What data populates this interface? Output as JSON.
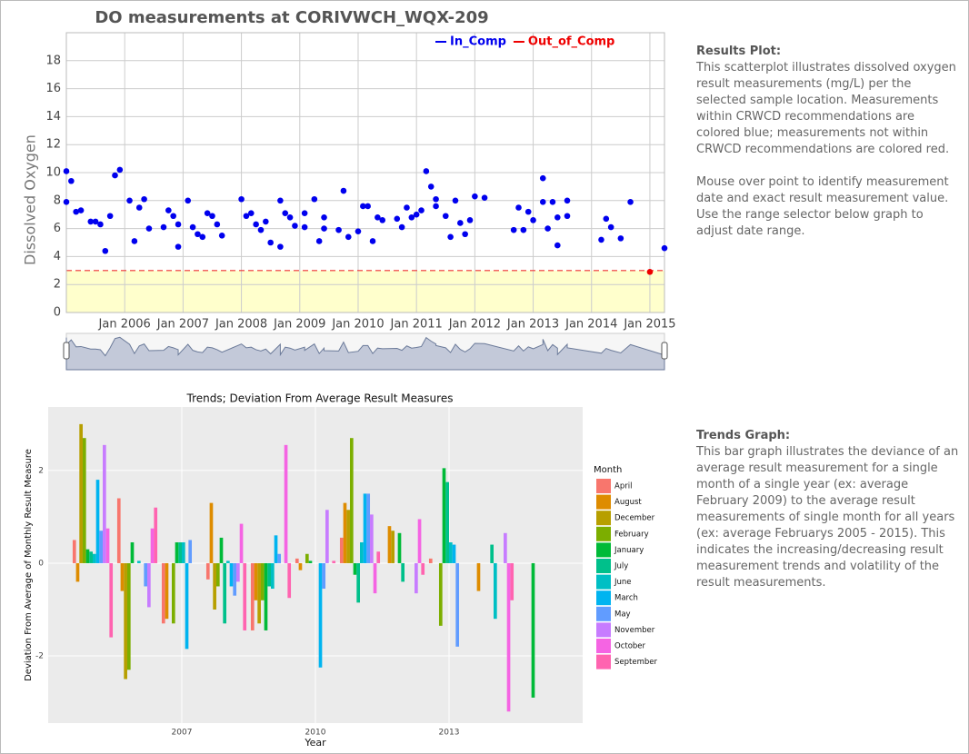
{
  "chart_data": [
    {
      "type": "scatter",
      "title": "DO measurements at CORIVWCH_WQX-209",
      "y_label": "Dissolved Oxygen",
      "xlim": [
        "2005-01",
        "2015-04"
      ],
      "xticks": [
        {
          "value": "2006-01",
          "label": "Jan 2006"
        },
        {
          "value": "2007-01",
          "label": "Jan 2007"
        },
        {
          "value": "2008-01",
          "label": "Jan 2008"
        },
        {
          "value": "2009-01",
          "label": "Jan 2009"
        },
        {
          "value": "2010-01",
          "label": "Jan 2010"
        },
        {
          "value": "2011-01",
          "label": "Jan 2011"
        },
        {
          "value": "2012-01",
          "label": "Jan 2012"
        },
        {
          "value": "2013-01",
          "label": "Jan 2013"
        },
        {
          "value": "2014-01",
          "label": "Jan 2014"
        },
        {
          "value": "2015-01",
          "label": "Jan 2015"
        }
      ],
      "ylim": [
        0,
        20
      ],
      "yticks": [
        0,
        2,
        4,
        6,
        8,
        10,
        12,
        14,
        16,
        18
      ],
      "grid": true,
      "threshold": 3,
      "series": [
        {
          "name": "In_Comp",
          "color": "#0000ee",
          "x": [
            "2005-01",
            "2005-01",
            "2005-02",
            "2005-03",
            "2005-04",
            "2005-06",
            "2005-07",
            "2005-08",
            "2005-09",
            "2005-10",
            "2005-11",
            "2005-12",
            "2006-02",
            "2006-03",
            "2006-04",
            "2006-05",
            "2006-06",
            "2006-09",
            "2006-10",
            "2006-11",
            "2006-12",
            "2006-12",
            "2007-02",
            "2007-03",
            "2007-04",
            "2007-05",
            "2007-06",
            "2007-07",
            "2007-08",
            "2007-09",
            "2008-01",
            "2008-02",
            "2008-03",
            "2008-04",
            "2008-05",
            "2008-06",
            "2008-07",
            "2008-09",
            "2008-09",
            "2008-10",
            "2008-11",
            "2008-12",
            "2009-02",
            "2009-02",
            "2009-04",
            "2009-05",
            "2009-06",
            "2009-06",
            "2009-09",
            "2009-10",
            "2009-11",
            "2010-01",
            "2010-02",
            "2010-03",
            "2010-04",
            "2010-05",
            "2010-06",
            "2010-09",
            "2010-10",
            "2010-11",
            "2010-12",
            "2011-01",
            "2011-02",
            "2011-03",
            "2011-04",
            "2011-05",
            "2011-05",
            "2011-07",
            "2011-08",
            "2011-09",
            "2011-10",
            "2011-11",
            "2011-12",
            "2012-01",
            "2012-03",
            "2012-09",
            "2012-10",
            "2012-11",
            "2012-12",
            "2013-01",
            "2013-03",
            "2013-03",
            "2013-04",
            "2013-05",
            "2013-06",
            "2013-06",
            "2013-08",
            "2013-08",
            "2014-03",
            "2014-04",
            "2014-05",
            "2014-07",
            "2014-09",
            "2015-04"
          ],
          "values": [
            10.1,
            7.9,
            9.4,
            7.2,
            7.3,
            6.5,
            6.5,
            6.3,
            4.4,
            6.9,
            9.8,
            10.2,
            8.0,
            5.1,
            7.5,
            8.1,
            6.0,
            6.1,
            7.3,
            6.9,
            6.3,
            4.7,
            8.0,
            6.1,
            5.6,
            5.4,
            7.1,
            6.9,
            6.3,
            5.5,
            8.1,
            6.9,
            7.1,
            6.3,
            5.9,
            6.5,
            5.0,
            8.0,
            4.7,
            7.1,
            6.8,
            6.2,
            7.1,
            6.1,
            8.1,
            5.1,
            6.8,
            6.0,
            5.9,
            8.7,
            5.4,
            5.8,
            7.6,
            7.6,
            5.1,
            6.8,
            6.6,
            6.7,
            6.1,
            7.5,
            6.8,
            7.0,
            7.3,
            10.1,
            9.0,
            8.1,
            7.6,
            6.9,
            5.4,
            8.0,
            6.4,
            5.6,
            6.6,
            8.3,
            8.2,
            5.9,
            7.5,
            5.9,
            7.2,
            6.6,
            7.9,
            9.6,
            6.0,
            7.9,
            6.8,
            4.8,
            8.0,
            6.9,
            5.2,
            6.7,
            6.1,
            5.3,
            7.9,
            4.6
          ]
        },
        {
          "name": "Out_of_Comp",
          "color": "#ee0000",
          "x": [
            "2015-01"
          ],
          "values": [
            2.9
          ]
        }
      ]
    },
    {
      "type": "bar",
      "title": "Trends; Deviation From Average Result Measures",
      "x_label": "Year",
      "y_label": "Deviation From Average of Monthly Result Measure",
      "legend_title": "Month",
      "x": [
        2005,
        2006,
        2007,
        2008,
        2009,
        2010,
        2011,
        2012,
        2013,
        2014,
        2015
      ],
      "xlim": [
        2004,
        2016
      ],
      "xticks": [
        2007,
        2010,
        2013
      ],
      "ylim": [
        -3.45,
        3.37
      ],
      "yticks": [
        -2,
        0,
        2
      ],
      "grid": true,
      "series": [
        {
          "name": "April",
          "color": "#F8766D",
          "values": [
            0.5,
            1.4,
            -1.3,
            -0.35,
            -1.45,
            0.1,
            0.55,
            null,
            0.1,
            null,
            null
          ]
        },
        {
          "name": "August",
          "color": "#DE8C00",
          "values": [
            -0.4,
            -0.6,
            -1.2,
            1.3,
            -0.8,
            -0.15,
            1.3,
            0.8,
            null,
            -0.6,
            null
          ]
        },
        {
          "name": "December",
          "color": "#B79F00",
          "values": [
            3.0,
            -2.5,
            null,
            -1.0,
            -1.3,
            null,
            1.15,
            0.7,
            null,
            null,
            null
          ]
        },
        {
          "name": "February",
          "color": "#7CAE00",
          "values": [
            2.7,
            -2.3,
            -1.3,
            -0.5,
            -0.8,
            0.2,
            2.7,
            null,
            -1.35,
            null,
            null
          ]
        },
        {
          "name": "January",
          "color": "#00BA38",
          "values": [
            0.3,
            0.45,
            0.45,
            0.55,
            -1.45,
            0.05,
            -0.25,
            0.65,
            2.05,
            null,
            -2.9
          ]
        },
        {
          "name": "July",
          "color": "#00C08B",
          "values": [
            0.25,
            null,
            0.45,
            -1.3,
            -0.5,
            null,
            -0.85,
            -0.4,
            1.75,
            0.4,
            null
          ]
        },
        {
          "name": "June",
          "color": "#00BFC4",
          "values": [
            0.2,
            0.05,
            0.45,
            0.05,
            -0.55,
            null,
            0.45,
            null,
            0.45,
            -1.2,
            null
          ]
        },
        {
          "name": "March",
          "color": "#00B4F0",
          "values": [
            1.8,
            null,
            -1.85,
            -0.5,
            0.6,
            -2.25,
            1.5,
            null,
            0.4,
            null,
            null
          ]
        },
        {
          "name": "May",
          "color": "#619CFF",
          "values": [
            0.7,
            -0.5,
            0.5,
            -0.7,
            0.2,
            -0.55,
            1.5,
            null,
            -1.8,
            null,
            null
          ]
        },
        {
          "name": "November",
          "color": "#C77CFF",
          "values": [
            2.55,
            -0.95,
            null,
            -0.4,
            null,
            1.15,
            1.05,
            -0.65,
            null,
            0.65,
            null
          ]
        },
        {
          "name": "October",
          "color": "#F564E3",
          "values": [
            0.75,
            0.75,
            null,
            0.85,
            2.55,
            null,
            -0.65,
            0.95,
            null,
            -3.2,
            null
          ]
        },
        {
          "name": "September",
          "color": "#FF64B0",
          "values": [
            -1.6,
            1.2,
            null,
            -1.45,
            -0.75,
            0.05,
            0.25,
            -0.25,
            null,
            -0.8,
            null
          ]
        }
      ]
    }
  ],
  "results_panel": {
    "heading": "Results Plot:",
    "paragraphs": [
      "This scatterplot illustrates dissolved oxygen result measurements (mg/L) per the selected sample location. Measurements within CRWCD recommendations are colored blue; measurements not within CRWCD recommendations are colored red.",
      "Mouse over point to identify measurement date and exact result measurement value. Use the range selector below graph to adjust date range."
    ]
  },
  "trends_panel": {
    "heading": "Trends Graph:",
    "paragraphs": [
      "This bar graph illustrates the deviance of an average result measurement for a single month of a single year (ex: average February 2009) to the average result measurements of single month for all years (ex: average Februarys 2005 - 2015). This indicates the increasing/decreasing result measurement trends and volatility of the result measurements."
    ]
  }
}
